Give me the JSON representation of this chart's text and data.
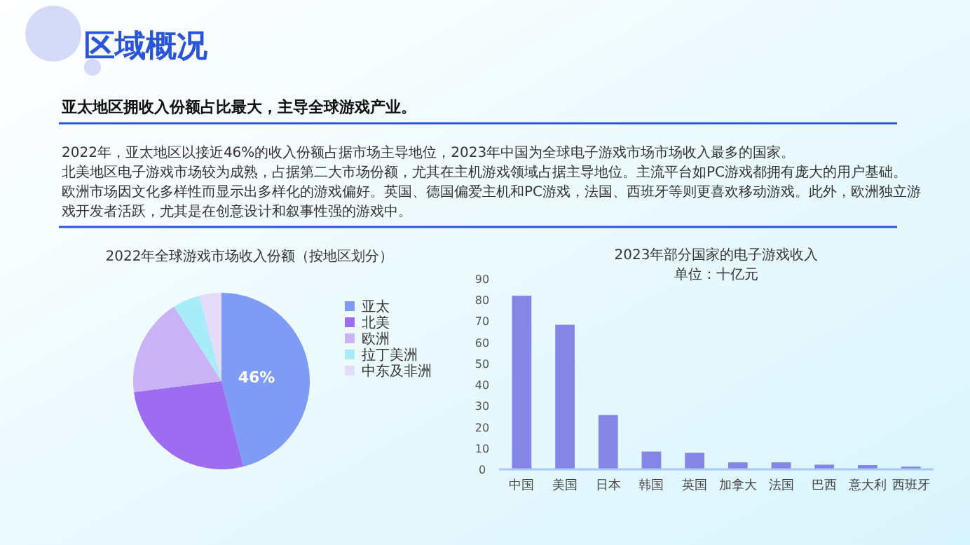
{
  "chart_data": [
    {
      "type": "other",
      "title": "区域概况",
      "subtitle": "亚太地区拥收入份额占比最大，主导全球游戏产业。",
      "annotations": [
        "2022年，亚太地区以接近46%的收入份额占据市场主导地位，2023年中国为全球电子游戏市场市场收入最多的国家。",
        "北美地区电子游戏市场较为成熟，占据第二大市场份额，尤其在主机游戏领域占据主导地位。主流平台如PC游戏都拥有庞大的用户基础。",
        "欧洲市场因文化多样性而显示出多样化的游戏偏好。英国、德国偏爱主机和PC游戏，法国、西班牙等则更喜欢移动游戏。此外，欧洲独立游戏开发者活跃，尤其是在创意设计和叙事性强的游戏中。"
      ]
    },
    {
      "type": "pie",
      "title": "2022年全球游戏市场收入份额（按地区划分）",
      "categories": [
        "亚太",
        "北美",
        "欧洲",
        "拉丁美洲",
        "中东及非洲"
      ],
      "values": [
        46,
        27,
        18,
        5,
        4
      ],
      "colors": [
        "#7f9cf5",
        "#9d6cf0",
        "#c9b3f5",
        "#a8ecf7",
        "#e3dcf9"
      ],
      "value_labels": [
        "46%",
        null,
        null,
        null,
        null
      ],
      "legend": "right"
    },
    {
      "type": "bar",
      "title": "2023年部分国家的电子游戏收入",
      "subtitle": "单位：十亿元",
      "categories": [
        "中国",
        "美国",
        "日本",
        "韩国",
        "英国",
        "加拿大",
        "法国",
        "巴西",
        "意大利",
        "西班牙"
      ],
      "values": [
        82,
        68.3,
        25.7,
        8.4,
        7.8,
        3.3,
        3.3,
        2.2,
        2,
        1.3
      ],
      "color": "#8585e6",
      "ylim": [
        0,
        90
      ],
      "yticks": [
        0,
        10,
        20,
        30,
        40,
        50,
        60,
        70,
        80,
        90
      ],
      "grid": false
    }
  ]
}
